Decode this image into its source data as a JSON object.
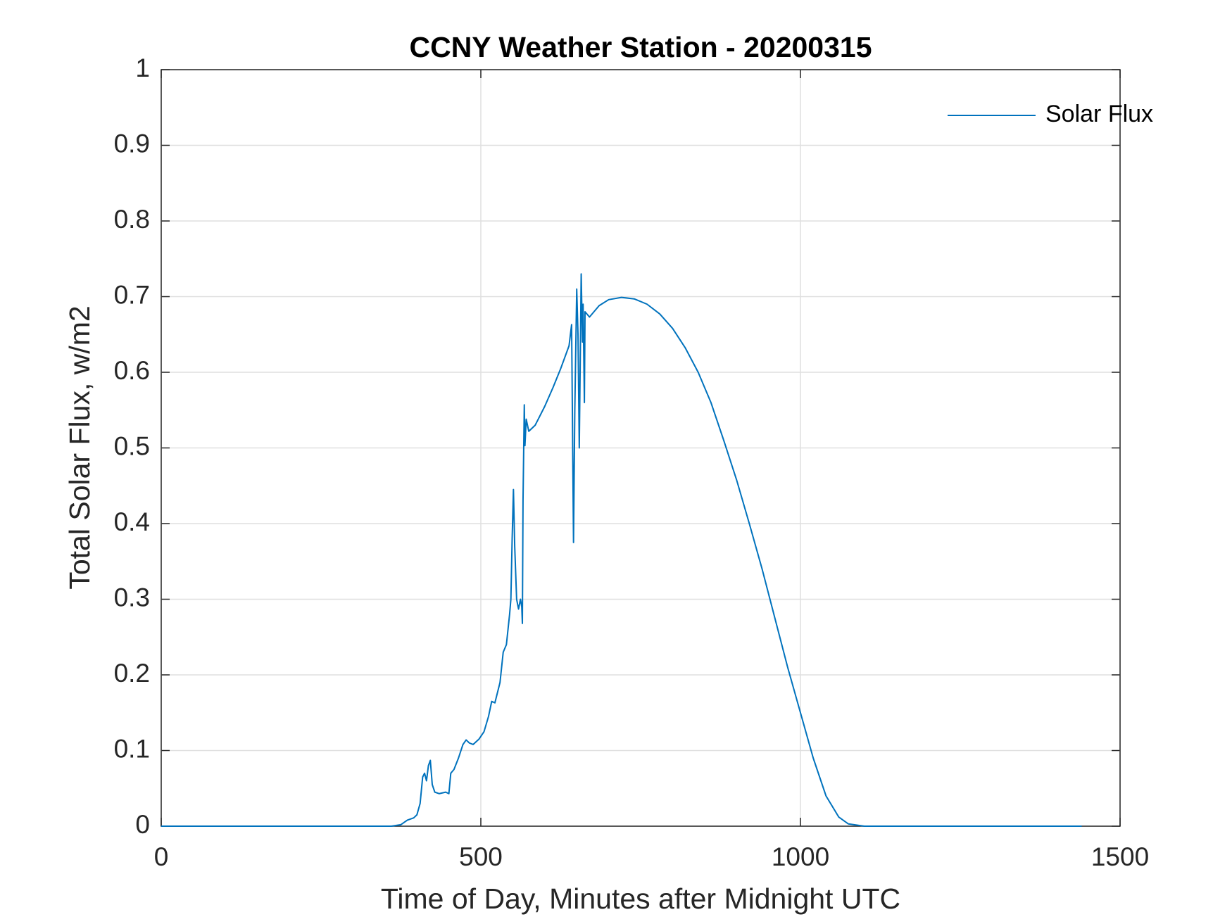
{
  "chart_data": {
    "type": "line",
    "title": "CCNY Weather Station - 20200315",
    "xlabel": "Time of Day, Minutes after Midnight UTC",
    "ylabel": "Total Solar Flux, w/m2",
    "x": [
      0,
      360,
      375,
      385,
      395,
      400,
      405,
      409,
      412,
      415,
      418,
      421,
      424,
      428,
      435,
      445,
      450,
      453,
      458,
      465,
      472,
      477,
      482,
      488,
      497,
      505,
      512,
      517,
      522,
      530,
      535,
      540,
      545,
      547,
      549,
      551,
      553,
      556,
      559,
      562,
      564,
      565,
      566,
      568,
      569,
      571,
      575,
      585,
      600,
      613,
      625,
      638,
      642,
      645,
      647,
      650,
      652,
      654,
      657,
      659,
      660,
      662,
      663,
      670,
      685,
      700,
      720,
      740,
      760,
      780,
      800,
      820,
      840,
      860,
      880,
      900,
      920,
      940,
      960,
      980,
      1000,
      1020,
      1040,
      1060,
      1075,
      1100,
      1440
    ],
    "series": [
      {
        "name": "Solar Flux",
        "color": "#0072bd",
        "values": [
          0,
          0,
          0.002,
          0.008,
          0.011,
          0.015,
          0.03,
          0.065,
          0.07,
          0.06,
          0.08,
          0.087,
          0.055,
          0.045,
          0.043,
          0.045,
          0.043,
          0.07,
          0.075,
          0.09,
          0.108,
          0.114,
          0.11,
          0.108,
          0.115,
          0.125,
          0.145,
          0.165,
          0.163,
          0.19,
          0.23,
          0.24,
          0.28,
          0.3,
          0.38,
          0.445,
          0.37,
          0.3,
          0.287,
          0.3,
          0.29,
          0.268,
          0.43,
          0.557,
          0.503,
          0.538,
          0.522,
          0.53,
          0.555,
          0.58,
          0.605,
          0.635,
          0.663,
          0.375,
          0.55,
          0.71,
          0.65,
          0.5,
          0.73,
          0.64,
          0.69,
          0.56,
          0.68,
          0.673,
          0.688,
          0.696,
          0.699,
          0.697,
          0.69,
          0.677,
          0.658,
          0.632,
          0.6,
          0.56,
          0.51,
          0.458,
          0.4,
          0.34,
          0.275,
          0.21,
          0.15,
          0.09,
          0.04,
          0.012,
          0.003,
          0,
          0
        ]
      }
    ],
    "xlim": [
      0,
      1500
    ],
    "xticks": [
      0,
      500,
      1000,
      1500
    ],
    "ylim": [
      0,
      1
    ],
    "yticks": [
      0,
      0.1,
      0.2,
      0.3,
      0.4,
      0.5,
      0.6,
      0.7,
      0.8,
      0.9,
      1
    ],
    "grid": true,
    "legend": "northeast"
  }
}
